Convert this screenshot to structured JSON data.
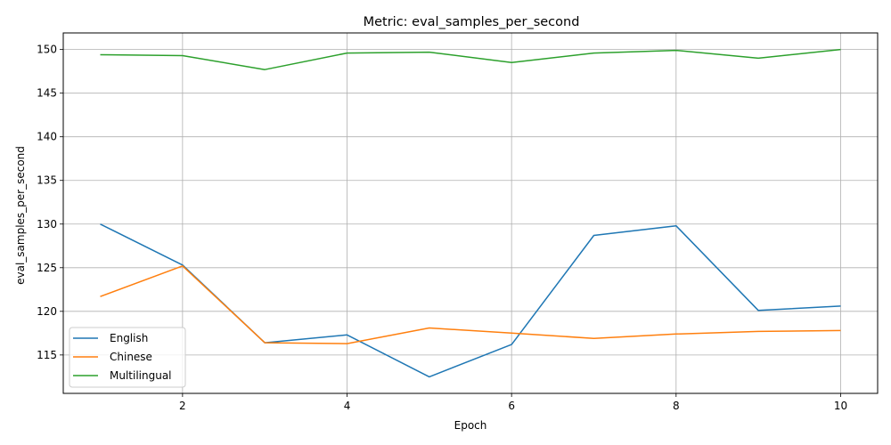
{
  "chart_data": {
    "type": "line",
    "title": "Metric: eval_samples_per_second",
    "xlabel": "Epoch",
    "ylabel": "eval_samples_per_second",
    "x": [
      1,
      2,
      3,
      4,
      5,
      6,
      7,
      8,
      9,
      10
    ],
    "xlim": [
      0.55,
      10.45
    ],
    "ylim": [
      110.6,
      151.9
    ],
    "xticks": [
      2,
      4,
      6,
      8,
      10
    ],
    "yticks": [
      115,
      120,
      125,
      130,
      135,
      140,
      145,
      150
    ],
    "grid": true,
    "legend_position": "lower-left",
    "series": [
      {
        "name": "English",
        "color": "#1f77b4",
        "values": [
          130.0,
          125.3,
          116.4,
          117.3,
          112.5,
          116.2,
          128.7,
          129.8,
          120.1,
          120.6
        ]
      },
      {
        "name": "Chinese",
        "color": "#ff7f0e",
        "values": [
          121.7,
          125.2,
          116.4,
          116.3,
          118.1,
          117.5,
          116.9,
          117.4,
          117.7,
          117.8
        ]
      },
      {
        "name": "Multilingual",
        "color": "#2ca02c",
        "values": [
          149.4,
          149.3,
          147.7,
          149.6,
          149.7,
          148.5,
          149.6,
          149.9,
          149.0,
          150.0
        ]
      }
    ]
  }
}
